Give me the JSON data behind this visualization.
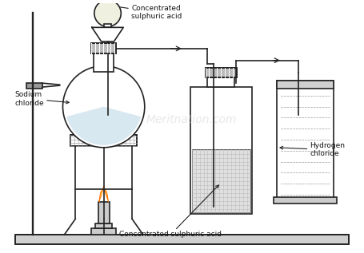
{
  "bg_color": "#ffffff",
  "line_color": "#222222",
  "lw": 1.2,
  "labels": {
    "concentrated_sulphuric_acid_top": "Concentrated\nsulphuric acid",
    "sodium_chloride": "Sodium\nchloride",
    "concentrated_sulphuric_acid_bottom": "Concentrated sulphuric acid",
    "hydrogen_chloride": "Hydrogen\nchloride"
  },
  "watermark": "Meritnation.com",
  "figsize": [
    4.55,
    3.17
  ],
  "dpi": 100
}
